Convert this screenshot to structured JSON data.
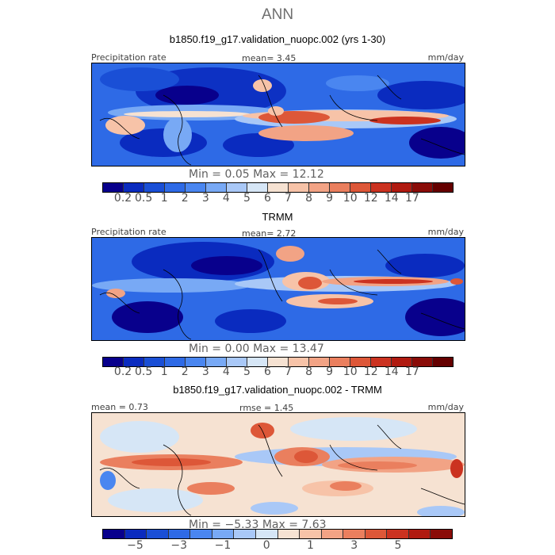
{
  "season": "ANN",
  "panels": [
    {
      "title": "b1850.f19_g17.validation_nuopc.002 (yrs 1-30)",
      "left_label": "Precipitation rate",
      "center_label": "mean=    3.45",
      "right_label": "mm/day",
      "minmax": "Min =    0.05 Max =   12.12"
    },
    {
      "title": "TRMM",
      "left_label": "Precipitation rate",
      "center_label": "mean=    2.72",
      "right_label": "mm/day",
      "minmax": "Min =    0.00 Max =   13.47"
    },
    {
      "title": "b1850.f19_g17.validation_nuopc.002 - TRMM",
      "left_label": "mean =    0.73",
      "center_label": "rmse =    1.45",
      "right_label": "mm/day",
      "minmax": "Min =   −5.33 Max =    7.63"
    }
  ],
  "colorbar_precip": {
    "colors": [
      "#08008c",
      "#0a2bbf",
      "#1a4fd6",
      "#2e6ae6",
      "#4a86f0",
      "#78a9f5",
      "#a9c8f7",
      "#d6e6f6",
      "#f6e2d2",
      "#f7c3a8",
      "#f2a385",
      "#ea7f5e",
      "#dd5738",
      "#cb3220",
      "#b01a10",
      "#8a0c08",
      "#650000"
    ],
    "ticks": [
      "0.2",
      "0.5",
      "1",
      "2",
      "3",
      "4",
      "5",
      "6",
      "7",
      "8",
      "9",
      "10",
      "12",
      "14",
      "17"
    ]
  },
  "colorbar_diff": {
    "colors": [
      "#08008c",
      "#0a2bbf",
      "#1a4fd6",
      "#2e6ae6",
      "#4a86f0",
      "#78a9f5",
      "#a9c8f7",
      "#d6e6f6",
      "#f6e2d2",
      "#f7c3a8",
      "#f2a385",
      "#ea7f5e",
      "#dd5738",
      "#cb3220",
      "#b01a10",
      "#8a0c08"
    ],
    "ticks": [
      "−5",
      "−3",
      "−1",
      "0",
      "1",
      "3",
      "5"
    ]
  }
}
